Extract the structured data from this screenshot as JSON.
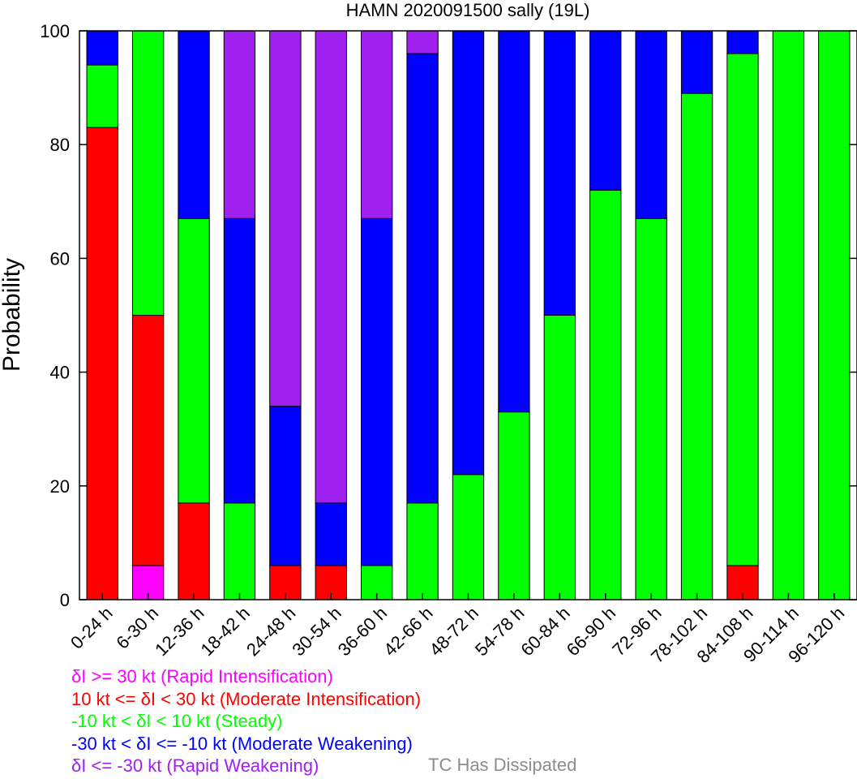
{
  "chart_data": {
    "type": "bar",
    "stacked": true,
    "title": "HAMN 2020091500 sally (19L)",
    "ylabel": "Probability",
    "xlabel": "",
    "ylim": [
      0,
      100
    ],
    "yticks": [
      0,
      20,
      40,
      60,
      80,
      100
    ],
    "grid": false,
    "categories": [
      "0-24 h",
      "6-30 h",
      "12-36 h",
      "18-42 h",
      "24-48 h",
      "30-54 h",
      "36-60 h",
      "42-66 h",
      "48-72 h",
      "54-78 h",
      "60-84 h",
      "66-90 h",
      "72-96 h",
      "78-102 h",
      "84-108 h",
      "90-114 h",
      "96-120 h"
    ],
    "series": [
      {
        "name": "δI >= 30 kt (Rapid Intensification)",
        "color": "#ff00ff",
        "values": [
          0,
          6,
          0,
          0,
          0,
          0,
          0,
          0,
          0,
          0,
          0,
          0,
          0,
          0,
          0,
          0,
          0
        ]
      },
      {
        "name": "10 kt <= δI < 30 kt (Moderate Intensification)",
        "color": "#ff0000",
        "values": [
          83,
          44,
          17,
          0,
          6,
          6,
          0,
          0,
          0,
          0,
          0,
          0,
          0,
          0,
          6,
          0,
          0
        ]
      },
      {
        "name": "-10 kt < δI < 10 kt (Steady)",
        "color": "#00ff00",
        "values": [
          11,
          50,
          50,
          17,
          0,
          0,
          6,
          17,
          22,
          33,
          50,
          72,
          67,
          89,
          90,
          100,
          100
        ]
      },
      {
        "name": "-30 kt < δI <= -10 kt (Moderate Weakening)",
        "color": "#0000ff",
        "values": [
          6,
          0,
          33,
          50,
          28,
          11,
          61,
          79,
          78,
          67,
          50,
          28,
          33,
          11,
          4,
          0,
          0
        ]
      },
      {
        "name": "δI <= -30 kt (Rapid Weakening)",
        "color": "#a020f0",
        "values": [
          0,
          0,
          0,
          33,
          66,
          83,
          33,
          4,
          0,
          0,
          0,
          0,
          0,
          0,
          0,
          0,
          0
        ]
      }
    ],
    "dissipated_label": "TC Has Dissipated",
    "dissipated_color": "#8c8c8c"
  }
}
